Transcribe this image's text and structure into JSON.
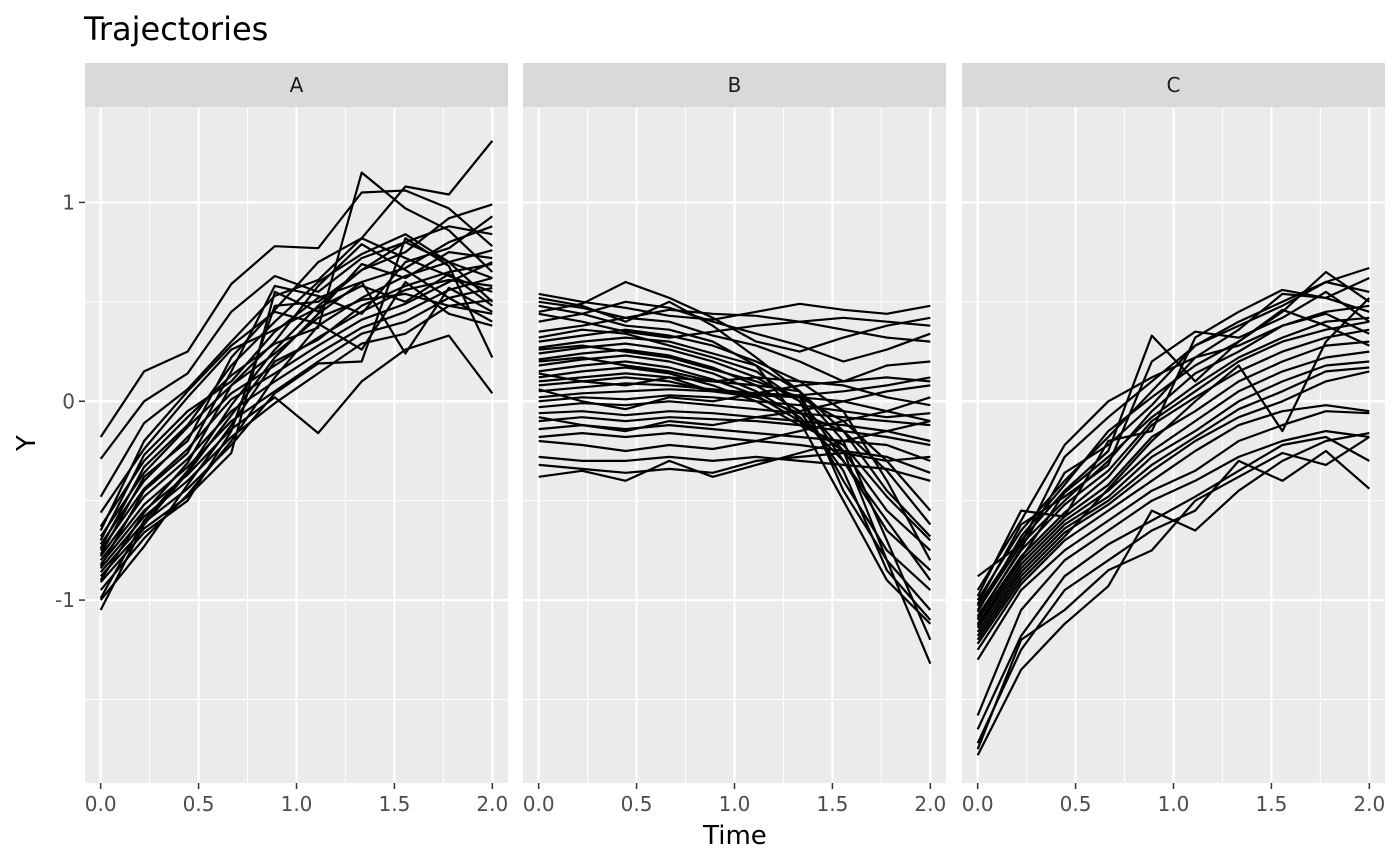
{
  "chart_data": {
    "type": "line",
    "title": "Trajectories",
    "xlabel": "Time",
    "ylabel": "Y",
    "xlim": [
      -0.08,
      2.08
    ],
    "ylim": [
      -1.92,
      1.48
    ],
    "x_ticks": [
      "0.0",
      "0.5",
      "1.0",
      "1.5",
      "2.0"
    ],
    "y_ticks": [
      "-1",
      "0",
      "1"
    ],
    "grid": true,
    "line_color": "#000000",
    "x": [
      0,
      0.222,
      0.444,
      0.667,
      0.889,
      1.111,
      1.333,
      1.556,
      1.778,
      2.0
    ],
    "panels": [
      {
        "label": "A",
        "series": [
          [
            -0.18,
            0.15,
            0.25,
            0.59,
            0.78,
            0.77,
            1.05,
            1.06,
            0.97,
            0.78
          ],
          [
            -0.29,
            0.0,
            0.14,
            0.45,
            0.63,
            0.55,
            0.72,
            0.8,
            0.7,
            0.62
          ],
          [
            -0.48,
            -0.11,
            0.06,
            0.3,
            0.53,
            0.61,
            0.82,
            1.08,
            1.04,
            1.31
          ],
          [
            -0.56,
            -0.24,
            0.02,
            0.26,
            0.36,
            0.47,
            0.58,
            0.5,
            0.64,
            0.48
          ],
          [
            -0.63,
            -0.3,
            -0.08,
            0.13,
            0.29,
            0.37,
            1.15,
            0.97,
            0.86,
            0.65
          ],
          [
            -0.68,
            -0.36,
            -0.13,
            0.08,
            0.24,
            0.42,
            0.51,
            0.54,
            0.48,
            0.44
          ],
          [
            -0.72,
            -0.4,
            -0.18,
            0.04,
            0.18,
            0.32,
            0.45,
            0.56,
            0.61,
            0.58
          ],
          [
            -0.75,
            -0.44,
            -0.24,
            0.01,
            0.14,
            0.28,
            0.41,
            0.49,
            0.6,
            0.7
          ],
          [
            -0.78,
            -0.48,
            -0.29,
            -0.05,
            0.1,
            0.24,
            0.37,
            0.45,
            0.56,
            0.62
          ],
          [
            -0.8,
            -0.52,
            -0.33,
            -0.1,
            0.05,
            0.2,
            0.34,
            0.4,
            0.52,
            0.57
          ],
          [
            -0.82,
            -0.55,
            -0.37,
            -0.14,
            0.02,
            -0.16,
            0.1,
            0.26,
            0.33,
            0.04
          ],
          [
            -0.84,
            -0.58,
            -0.4,
            -0.18,
            -0.01,
            0.14,
            0.29,
            0.34,
            0.48,
            0.51
          ],
          [
            -0.86,
            -0.61,
            -0.44,
            -0.22,
            0.04,
            0.19,
            0.2,
            0.82,
            0.68,
            0.22
          ],
          [
            -0.88,
            -0.64,
            -0.48,
            -0.26,
            0.55,
            0.45,
            0.69,
            0.62,
            0.75,
            0.72
          ],
          [
            -0.91,
            -0.66,
            -0.5,
            -0.15,
            0.48,
            0.5,
            0.66,
            0.75,
            0.92,
            0.99
          ],
          [
            -0.95,
            -0.69,
            -0.47,
            -0.2,
            0.12,
            0.38,
            0.52,
            0.63,
            0.7,
            0.76
          ],
          [
            -1.0,
            -0.73,
            -0.42,
            -0.12,
            0.2,
            0.31,
            0.48,
            0.58,
            0.65,
            0.69
          ],
          [
            -1.05,
            -0.62,
            -0.36,
            -0.07,
            0.22,
            0.44,
            0.6,
            0.67,
            0.8,
            0.88
          ],
          [
            -0.7,
            -0.27,
            -0.05,
            0.1,
            0.35,
            0.52,
            0.6,
            0.24,
            0.57,
            0.45
          ],
          [
            -0.74,
            -0.33,
            -0.12,
            0.18,
            0.4,
            0.6,
            0.74,
            0.84,
            0.7,
            0.5
          ],
          [
            -0.77,
            -0.38,
            -0.2,
            0.22,
            0.46,
            0.7,
            0.82,
            0.72,
            0.63,
            0.55
          ],
          [
            -0.83,
            -0.45,
            -0.26,
            0.15,
            0.58,
            0.53,
            0.44,
            0.7,
            0.77,
            0.93
          ],
          [
            -0.9,
            -0.56,
            -0.31,
            0.08,
            0.3,
            0.58,
            0.79,
            0.66,
            0.52,
            0.4
          ],
          [
            -0.65,
            -0.2,
            0.05,
            0.28,
            0.45,
            0.39,
            0.26,
            0.6,
            0.44,
            0.38
          ],
          [
            -0.99,
            -0.6,
            -0.35,
            -0.02,
            0.26,
            0.48,
            0.66,
            0.8,
            0.88,
            0.84
          ]
        ]
      },
      {
        "label": "B",
        "series": [
          [
            0.54,
            0.5,
            0.47,
            0.43,
            0.41,
            0.45,
            0.49,
            0.46,
            0.44,
            0.48
          ],
          [
            0.5,
            0.47,
            0.42,
            0.46,
            0.44,
            0.43,
            0.4,
            0.36,
            0.32,
            0.3
          ],
          [
            0.45,
            0.49,
            0.6,
            0.52,
            0.42,
            0.3,
            0.25,
            0.32,
            0.38,
            0.42
          ],
          [
            0.4,
            0.44,
            0.5,
            0.47,
            0.4,
            0.34,
            0.28,
            0.2,
            0.26,
            0.34
          ],
          [
            0.35,
            0.38,
            0.42,
            0.4,
            0.33,
            0.28,
            0.2,
            0.1,
            0.18,
            0.2
          ],
          [
            0.3,
            0.33,
            0.36,
            0.33,
            0.28,
            0.2,
            0.1,
            -0.05,
            -0.4,
            -0.8
          ],
          [
            0.27,
            0.3,
            0.32,
            0.3,
            0.24,
            0.18,
            0.05,
            -0.2,
            -0.7,
            -1.2
          ],
          [
            0.24,
            0.27,
            0.29,
            0.26,
            0.2,
            0.12,
            0.0,
            -0.25,
            -0.8,
            -1.32
          ],
          [
            0.21,
            0.24,
            0.26,
            0.23,
            0.17,
            0.08,
            -0.05,
            -0.35,
            -0.85,
            -1.1
          ],
          [
            0.18,
            0.21,
            0.23,
            0.2,
            0.14,
            0.05,
            -0.08,
            -0.3,
            -0.6,
            -0.9
          ],
          [
            0.15,
            0.18,
            0.2,
            0.17,
            0.11,
            0.03,
            -0.1,
            -0.25,
            -0.55,
            -0.75
          ],
          [
            0.12,
            0.15,
            0.17,
            0.14,
            0.08,
            0.0,
            -0.12,
            -0.22,
            -0.48,
            -0.7
          ],
          [
            0.1,
            0.12,
            0.14,
            0.12,
            0.05,
            0.02,
            -0.06,
            -0.15,
            -0.35,
            -0.62
          ],
          [
            0.08,
            0.1,
            0.12,
            0.1,
            0.05,
            0.03,
            0.02,
            -0.1,
            -0.3,
            -0.55
          ],
          [
            0.05,
            0.07,
            0.09,
            0.08,
            0.06,
            0.04,
            0.02,
            0.0,
            -0.05,
            -0.1
          ],
          [
            0.02,
            0.04,
            0.05,
            0.06,
            0.05,
            0.04,
            0.03,
            0.05,
            0.08,
            0.12
          ],
          [
            0.0,
            0.02,
            0.01,
            0.03,
            0.02,
            0.0,
            -0.02,
            -0.05,
            -0.08,
            -0.06
          ],
          [
            -0.03,
            -0.01,
            -0.02,
            0.0,
            -0.02,
            -0.04,
            -0.06,
            -0.08,
            -0.1,
            -0.12
          ],
          [
            -0.06,
            -0.05,
            -0.07,
            -0.05,
            -0.06,
            -0.08,
            -0.1,
            -0.12,
            -0.15,
            -0.2
          ],
          [
            -0.1,
            -0.08,
            -0.1,
            -0.08,
            -0.09,
            -0.1,
            -0.12,
            -0.15,
            -0.18,
            -0.22
          ],
          [
            -0.14,
            -0.12,
            -0.14,
            -0.12,
            -0.14,
            -0.16,
            -0.18,
            -0.2,
            -0.22,
            -0.3
          ],
          [
            -0.18,
            -0.16,
            -0.18,
            -0.16,
            -0.18,
            -0.2,
            -0.22,
            -0.25,
            -0.28,
            -0.36
          ],
          [
            -0.28,
            -0.3,
            -0.3,
            -0.28,
            -0.3,
            -0.28,
            -0.3,
            -0.32,
            -0.34,
            -0.4
          ],
          [
            -0.32,
            -0.34,
            -0.36,
            -0.34,
            -0.36,
            -0.3,
            -0.28,
            -0.26,
            -0.3,
            -0.28
          ],
          [
            -0.38,
            -0.35,
            -0.4,
            -0.3,
            -0.38,
            -0.32,
            -0.26,
            -0.2,
            -0.15,
            -0.1
          ],
          [
            0.52,
            0.48,
            0.4,
            0.5,
            0.38,
            0.22,
            0.05,
            -0.45,
            -0.8,
            -1.05
          ],
          [
            0.48,
            0.44,
            0.38,
            0.36,
            0.3,
            0.18,
            -0.1,
            -0.5,
            -0.9,
            -1.12
          ],
          [
            0.32,
            0.36,
            0.34,
            0.28,
            0.22,
            0.15,
            0.0,
            -0.4,
            -0.75,
            -0.95
          ],
          [
            0.26,
            0.28,
            0.25,
            0.22,
            0.16,
            0.1,
            0.02,
            -0.3,
            -0.65,
            -0.85
          ],
          [
            0.2,
            0.22,
            0.18,
            0.15,
            0.1,
            0.08,
            0.05,
            -0.15,
            -0.45,
            -0.68
          ],
          [
            0.14,
            0.1,
            0.08,
            0.12,
            0.1,
            0.12,
            0.1,
            0.08,
            0.02,
            -0.02
          ],
          [
            0.06,
            0.0,
            -0.04,
            0.02,
            0.0,
            0.04,
            0.08,
            0.1,
            0.12,
            0.1
          ],
          [
            -0.08,
            -0.12,
            -0.15,
            -0.1,
            -0.12,
            -0.08,
            -0.05,
            0.0,
            0.05,
            0.08
          ],
          [
            -0.2,
            -0.22,
            -0.25,
            -0.22,
            -0.24,
            -0.2,
            -0.15,
            -0.1,
            -0.05,
            0.02
          ],
          [
            0.44,
            0.4,
            0.35,
            0.32,
            0.35,
            0.38,
            0.4,
            0.42,
            0.4,
            0.38
          ]
        ]
      },
      {
        "label": "C",
        "series": [
          [
            -0.88,
            -0.72,
            -0.28,
            -0.08,
            0.1,
            0.28,
            0.4,
            0.5,
            0.6,
            0.67
          ],
          [
            -0.95,
            -0.6,
            -0.22,
            0.0,
            0.12,
            0.22,
            0.36,
            0.54,
            0.52,
            0.62
          ],
          [
            -1.0,
            -0.65,
            -0.4,
            -0.18,
            0.05,
            0.28,
            0.38,
            0.48,
            0.6,
            0.55
          ],
          [
            -1.03,
            -0.7,
            -0.45,
            -0.25,
            0.33,
            0.1,
            0.3,
            0.45,
            0.65,
            0.5
          ],
          [
            -1.05,
            -0.72,
            -0.5,
            -0.3,
            -0.05,
            0.14,
            0.25,
            0.38,
            0.45,
            0.48
          ],
          [
            -1.08,
            -0.75,
            -0.52,
            -0.35,
            -0.1,
            0.05,
            0.2,
            0.3,
            0.36,
            0.4
          ],
          [
            -1.1,
            -0.78,
            -0.56,
            -0.38,
            -0.12,
            0.02,
            0.15,
            0.25,
            0.32,
            0.36
          ],
          [
            -1.12,
            -0.8,
            -0.58,
            -0.42,
            -0.18,
            -0.05,
            0.1,
            0.2,
            0.28,
            0.3
          ],
          [
            -1.14,
            -0.82,
            -0.6,
            -0.45,
            -0.25,
            -0.1,
            0.05,
            0.15,
            0.22,
            0.25
          ],
          [
            -1.16,
            -0.84,
            -0.62,
            -0.48,
            -0.28,
            -0.15,
            0.0,
            0.1,
            0.18,
            0.2
          ],
          [
            -1.18,
            -0.86,
            -0.64,
            -0.5,
            -0.32,
            -0.18,
            -0.04,
            0.05,
            0.15,
            0.17
          ],
          [
            -1.2,
            -0.88,
            -0.66,
            -0.52,
            -0.35,
            -0.2,
            -0.08,
            0.0,
            0.1,
            0.15
          ],
          [
            -1.25,
            -0.92,
            -0.7,
            -0.55,
            -0.4,
            -0.25,
            -0.12,
            -0.05,
            -0.02,
            -0.05
          ],
          [
            -1.3,
            -0.95,
            -0.75,
            -0.6,
            -0.45,
            -0.35,
            -0.2,
            -0.12,
            -0.05,
            -0.06
          ],
          [
            -1.58,
            -1.05,
            -0.8,
            -0.65,
            -0.5,
            -0.4,
            -0.28,
            -0.2,
            -0.15,
            -0.18
          ],
          [
            -1.65,
            -1.18,
            -0.88,
            -0.72,
            -0.6,
            -0.48,
            -0.35,
            -0.22,
            -0.18,
            -0.3
          ],
          [
            -1.72,
            -1.25,
            -0.95,
            -0.8,
            -0.65,
            -0.55,
            -0.3,
            -0.4,
            -0.25,
            -0.44
          ],
          [
            -1.78,
            -1.35,
            -1.12,
            -0.93,
            -0.55,
            -0.65,
            -0.45,
            -0.3,
            -0.2,
            -0.16
          ],
          [
            -1.75,
            -1.2,
            -1.05,
            -0.85,
            -0.75,
            -0.5,
            -0.38,
            -0.26,
            -0.32,
            -0.18
          ],
          [
            -0.98,
            -0.55,
            -0.58,
            -0.2,
            -0.15,
            0.32,
            0.45,
            0.56,
            0.52,
            0.45
          ],
          [
            -1.02,
            -0.62,
            -0.48,
            -0.32,
            0.2,
            0.35,
            0.32,
            0.42,
            0.55,
            0.4
          ],
          [
            -1.06,
            -0.68,
            -0.42,
            -0.15,
            0.02,
            0.18,
            0.3,
            0.46,
            0.38,
            0.28
          ],
          [
            -1.09,
            -0.74,
            -0.36,
            -0.22,
            -0.02,
            0.22,
            0.28,
            0.38,
            0.44,
            0.34
          ],
          [
            -1.13,
            -0.79,
            -0.46,
            -0.28,
            -0.08,
            0.08,
            0.22,
            0.32,
            0.4,
            0.42
          ],
          [
            -1.22,
            -0.9,
            -0.68,
            -0.44,
            -0.2,
            0.0,
            0.18,
            -0.15,
            0.3,
            0.52
          ]
        ]
      }
    ]
  }
}
